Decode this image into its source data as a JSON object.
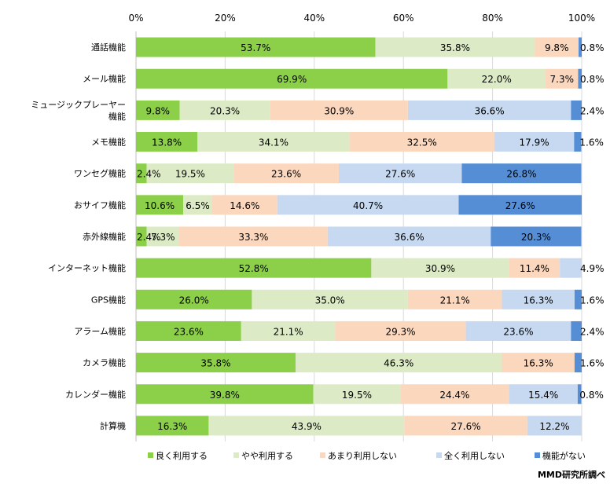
{
  "chart_data": {
    "type": "bar",
    "orientation": "horizontal",
    "stacked": "percent",
    "xlim": [
      0,
      100
    ],
    "x_ticks": [
      "0%",
      "20%",
      "40%",
      "60%",
      "80%",
      "100%"
    ],
    "grid": true,
    "legend_position": "bottom",
    "categories": [
      [
        "通話機能"
      ],
      [
        "メール機能"
      ],
      [
        "ミュージックプレーヤー",
        "機能"
      ],
      [
        "メモ機能"
      ],
      [
        "ワンセグ機能"
      ],
      [
        "おサイフ機能"
      ],
      [
        "赤外線機能"
      ],
      [
        "インターネット機能"
      ],
      [
        "GPS機能"
      ],
      [
        "アラーム機能"
      ],
      [
        "カメラ機能"
      ],
      [
        "カレンダー機能"
      ],
      [
        "計算機"
      ]
    ],
    "series": [
      {
        "name": "良く利用する",
        "color": "#8cd04a",
        "values": [
          53.7,
          69.9,
          9.8,
          13.8,
          2.4,
          10.6,
          2.4,
          52.8,
          26.0,
          23.6,
          35.8,
          39.8,
          16.3
        ],
        "labels": [
          "53.7%",
          "69.9%",
          "9.8%",
          "13.8%",
          "2.4%",
          "10.6%",
          "2.4%",
          "52.8%",
          "26.0%",
          "23.6%",
          "35.8%",
          "39.8%",
          "16.3%"
        ]
      },
      {
        "name": "やや利用する",
        "color": "#dcebc5",
        "values": [
          35.8,
          22.0,
          20.3,
          34.1,
          19.5,
          6.5,
          7.3,
          30.9,
          35.0,
          21.1,
          46.3,
          19.5,
          43.9
        ],
        "labels": [
          "35.8%",
          "22.0%",
          "20.3%",
          "34.1%",
          "19.5%",
          "6.5%",
          "7.3%",
          "30.9%",
          "35.0%",
          "21.1%",
          "46.3%",
          "19.5%",
          "43.9%"
        ]
      },
      {
        "name": "あまり利用しない",
        "color": "#fbd7bd",
        "values": [
          9.8,
          7.3,
          30.9,
          32.5,
          23.6,
          14.6,
          33.3,
          11.4,
          21.1,
          29.3,
          16.3,
          24.4,
          27.6
        ],
        "labels": [
          "9.8%",
          "7.3%",
          "30.9%",
          "32.5%",
          "23.6%",
          "14.6%",
          "33.3%",
          "11.4%",
          "21.1%",
          "29.3%",
          "16.3%",
          "24.4%",
          "27.6%"
        ]
      },
      {
        "name": "全く利用しない",
        "color": "#c6d9f1",
        "values": [
          0,
          0,
          36.6,
          17.9,
          27.6,
          40.7,
          36.6,
          4.9,
          16.3,
          23.6,
          0,
          15.4,
          12.2
        ],
        "labels": [
          "",
          "",
          "36.6%",
          "17.9%",
          "27.6%",
          "40.7%",
          "36.6%",
          "4.9%",
          "16.3%",
          "23.6%",
          "",
          "15.4%",
          "12.2%"
        ]
      },
      {
        "name": "機能がない",
        "color": "#558ed5",
        "values": [
          0.8,
          0.8,
          2.4,
          1.6,
          26.8,
          27.6,
          20.3,
          0,
          1.6,
          2.4,
          1.6,
          0.8,
          0
        ],
        "labels": [
          "0.8%",
          "0.8%",
          "2.4%",
          "1.6%",
          "26.8%",
          "27.6%",
          "20.3%",
          "",
          "1.6%",
          "2.4%",
          "1.6%",
          "0.8%",
          ""
        ]
      }
    ],
    "credit": "MMD研究所調べ"
  }
}
